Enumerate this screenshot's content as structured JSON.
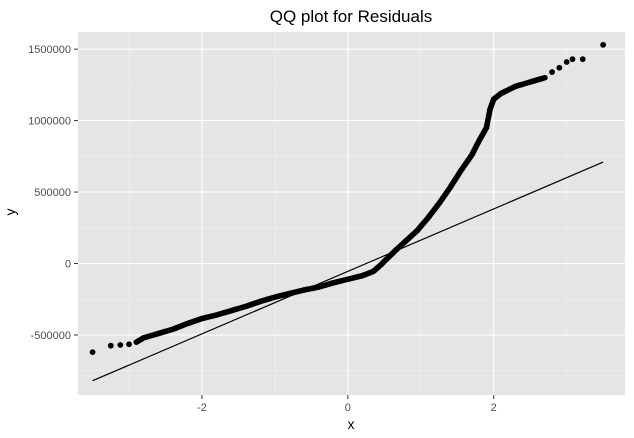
{
  "chart_data": {
    "type": "scatter",
    "title": "QQ plot for Residuals",
    "xlabel": "x",
    "ylabel": "y",
    "xlim": [
      -3.7,
      3.8
    ],
    "ylim": [
      -920000,
      1620000
    ],
    "x_ticks": [
      -2,
      0,
      2
    ],
    "x_tick_labels": [
      "-2",
      "0",
      "2"
    ],
    "y_ticks": [
      -500000,
      0,
      500000,
      1000000,
      1500000
    ],
    "y_tick_labels": [
      "-500000",
      "0",
      "500000",
      "1000000",
      "1500000"
    ],
    "grid": true,
    "legend": "none",
    "point_color": "#000000",
    "panel_color": "#e5e5e5",
    "reference_line": {
      "x": [
        -3.5,
        3.5
      ],
      "y": [
        -820000,
        710000
      ]
    },
    "points_profile": [
      [
        -3.5,
        -620000
      ],
      [
        -3.25,
        -575000
      ],
      [
        -3.12,
        -570000
      ],
      [
        -3.0,
        -565000
      ],
      [
        -2.9,
        -550000
      ],
      [
        -2.8,
        -520000
      ],
      [
        -2.6,
        -490000
      ],
      [
        -2.4,
        -460000
      ],
      [
        -2.2,
        -420000
      ],
      [
        -2.0,
        -385000
      ],
      [
        -1.8,
        -360000
      ],
      [
        -1.6,
        -330000
      ],
      [
        -1.4,
        -300000
      ],
      [
        -1.2,
        -265000
      ],
      [
        -1.0,
        -235000
      ],
      [
        -0.8,
        -210000
      ],
      [
        -0.6,
        -185000
      ],
      [
        -0.4,
        -165000
      ],
      [
        -0.2,
        -135000
      ],
      [
        0.0,
        -110000
      ],
      [
        0.2,
        -85000
      ],
      [
        0.35,
        -55000
      ],
      [
        0.45,
        -10000
      ],
      [
        0.55,
        40000
      ],
      [
        0.65,
        90000
      ],
      [
        0.8,
        160000
      ],
      [
        0.95,
        230000
      ],
      [
        1.1,
        320000
      ],
      [
        1.25,
        420000
      ],
      [
        1.4,
        530000
      ],
      [
        1.55,
        650000
      ],
      [
        1.7,
        760000
      ],
      [
        1.8,
        860000
      ],
      [
        1.9,
        950000
      ],
      [
        1.95,
        1080000
      ],
      [
        2.0,
        1150000
      ],
      [
        2.1,
        1190000
      ],
      [
        2.3,
        1240000
      ],
      [
        2.5,
        1270000
      ],
      [
        2.7,
        1300000
      ],
      [
        2.8,
        1340000
      ],
      [
        2.9,
        1370000
      ],
      [
        3.0,
        1410000
      ],
      [
        3.08,
        1430000
      ],
      [
        3.22,
        1430000
      ],
      [
        3.5,
        1530000
      ]
    ]
  }
}
